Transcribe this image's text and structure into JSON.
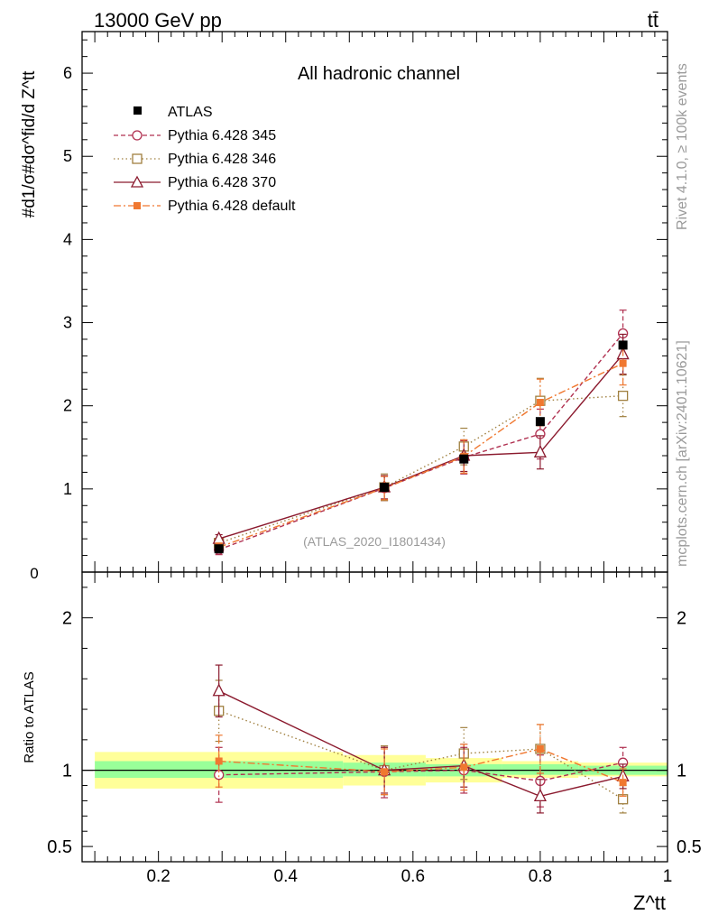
{
  "header": {
    "energy_label": "13000 GeV pp",
    "process_label": "tt̄",
    "side_label_top": "Rivet 4.1.0, ≥ 100k events",
    "side_label_bottom": "mcplots.cern.ch [arXiv:2401.10621]"
  },
  "chart_data": [
    {
      "type": "line",
      "title": "All hadronic channel",
      "watermark": "(ATLAS_2020_I1801434)",
      "ylabel": "#d1/σ#dσ^fid/d Z^tt",
      "xlabel": "Z^tt",
      "xlim": [
        0.08,
        1.0
      ],
      "ylim": [
        0,
        6.5
      ],
      "yticks": [
        1,
        2,
        3,
        4,
        5,
        6
      ],
      "ytick_labels": [
        "1",
        "2",
        "3",
        "4",
        "5",
        "6"
      ],
      "x": [
        0.295,
        0.555,
        0.68,
        0.8,
        0.93
      ],
      "series": [
        {
          "name": "ATLAS",
          "color": "#000000",
          "style": "data",
          "values": [
            0.28,
            1.02,
            1.36,
            1.81,
            2.73
          ]
        },
        {
          "name": "Pythia 6.428 345",
          "color": "#b03050",
          "style": "dashed",
          "marker": "circle",
          "values": [
            0.27,
            1.01,
            1.38,
            1.66,
            2.87
          ],
          "err": [
            0.06,
            0.15,
            0.2,
            0.3,
            0.28
          ]
        },
        {
          "name": "Pythia 6.428 346",
          "color": "#a08040",
          "style": "dotted",
          "marker": "square",
          "values": [
            0.35,
            1.02,
            1.51,
            2.06,
            2.12
          ],
          "err": [
            0.05,
            0.16,
            0.22,
            0.27,
            0.25
          ]
        },
        {
          "name": "Pythia 6.428 370",
          "color": "#8b1a2e",
          "style": "solid",
          "marker": "triangle",
          "values": [
            0.4,
            1.02,
            1.4,
            1.44,
            2.62
          ],
          "err": [
            0.05,
            0.14,
            0.19,
            0.2,
            0.24
          ]
        },
        {
          "name": "Pythia 6.428 default",
          "color": "#f07830",
          "style": "dashdot",
          "marker": "filled-square",
          "values": [
            0.3,
            1.01,
            1.39,
            2.04,
            2.51
          ],
          "err": [
            0.05,
            0.14,
            0.2,
            0.28,
            0.26
          ]
        }
      ]
    },
    {
      "type": "line",
      "title": "",
      "ylabel": "Ratio to ATLAS",
      "xlabel": "Z^tt",
      "xlim": [
        0.08,
        1.0
      ],
      "ylim": [
        0.4,
        2.3
      ],
      "yticks": [
        0.5,
        1,
        2
      ],
      "ytick_labels": [
        "0.5",
        "1",
        "2"
      ],
      "xticks": [
        0.2,
        0.4,
        0.6,
        0.8,
        1.0
      ],
      "xtick_labels": [
        "0.2",
        "0.4",
        "0.6",
        "0.8",
        "1"
      ],
      "x": [
        0.295,
        0.555,
        0.68,
        0.8,
        0.93
      ],
      "bands": {
        "edges": [
          0.1,
          0.49,
          0.62,
          0.74,
          0.86,
          1.0
        ],
        "inner": [
          [
            0.95,
            1.06
          ],
          [
            0.96,
            1.05
          ],
          [
            0.96,
            1.04
          ],
          [
            0.97,
            1.04
          ],
          [
            0.97,
            1.03
          ]
        ],
        "outer": [
          [
            0.88,
            1.12
          ],
          [
            0.9,
            1.1
          ],
          [
            0.92,
            1.08
          ],
          [
            0.95,
            1.06
          ],
          [
            0.96,
            1.05
          ]
        ]
      },
      "series": [
        {
          "name": "Pythia 6.428 345",
          "color": "#b03050",
          "style": "dashed",
          "marker": "circle",
          "values": [
            0.97,
            0.99,
            1.0,
            0.93,
            1.05
          ],
          "err": [
            0.18,
            0.17,
            0.15,
            0.17,
            0.1
          ]
        },
        {
          "name": "Pythia 6.428 346",
          "color": "#a08040",
          "style": "dotted",
          "marker": "square",
          "values": [
            1.39,
            1.0,
            1.11,
            1.14,
            0.81
          ],
          "err": [
            0.2,
            0.16,
            0.17,
            0.16,
            0.09
          ]
        },
        {
          "name": "Pythia 6.428 370",
          "color": "#8b1a2e",
          "style": "solid",
          "marker": "triangle",
          "values": [
            1.52,
            1.0,
            1.03,
            0.83,
            0.96
          ],
          "err": [
            0.17,
            0.15,
            0.14,
            0.11,
            0.08
          ]
        },
        {
          "name": "Pythia 6.428 default",
          "color": "#f07830",
          "style": "dashdot",
          "marker": "filled-square",
          "values": [
            1.06,
            0.99,
            1.02,
            1.14,
            0.92
          ],
          "err": [
            0.17,
            0.15,
            0.15,
            0.16,
            0.09
          ]
        }
      ]
    }
  ]
}
